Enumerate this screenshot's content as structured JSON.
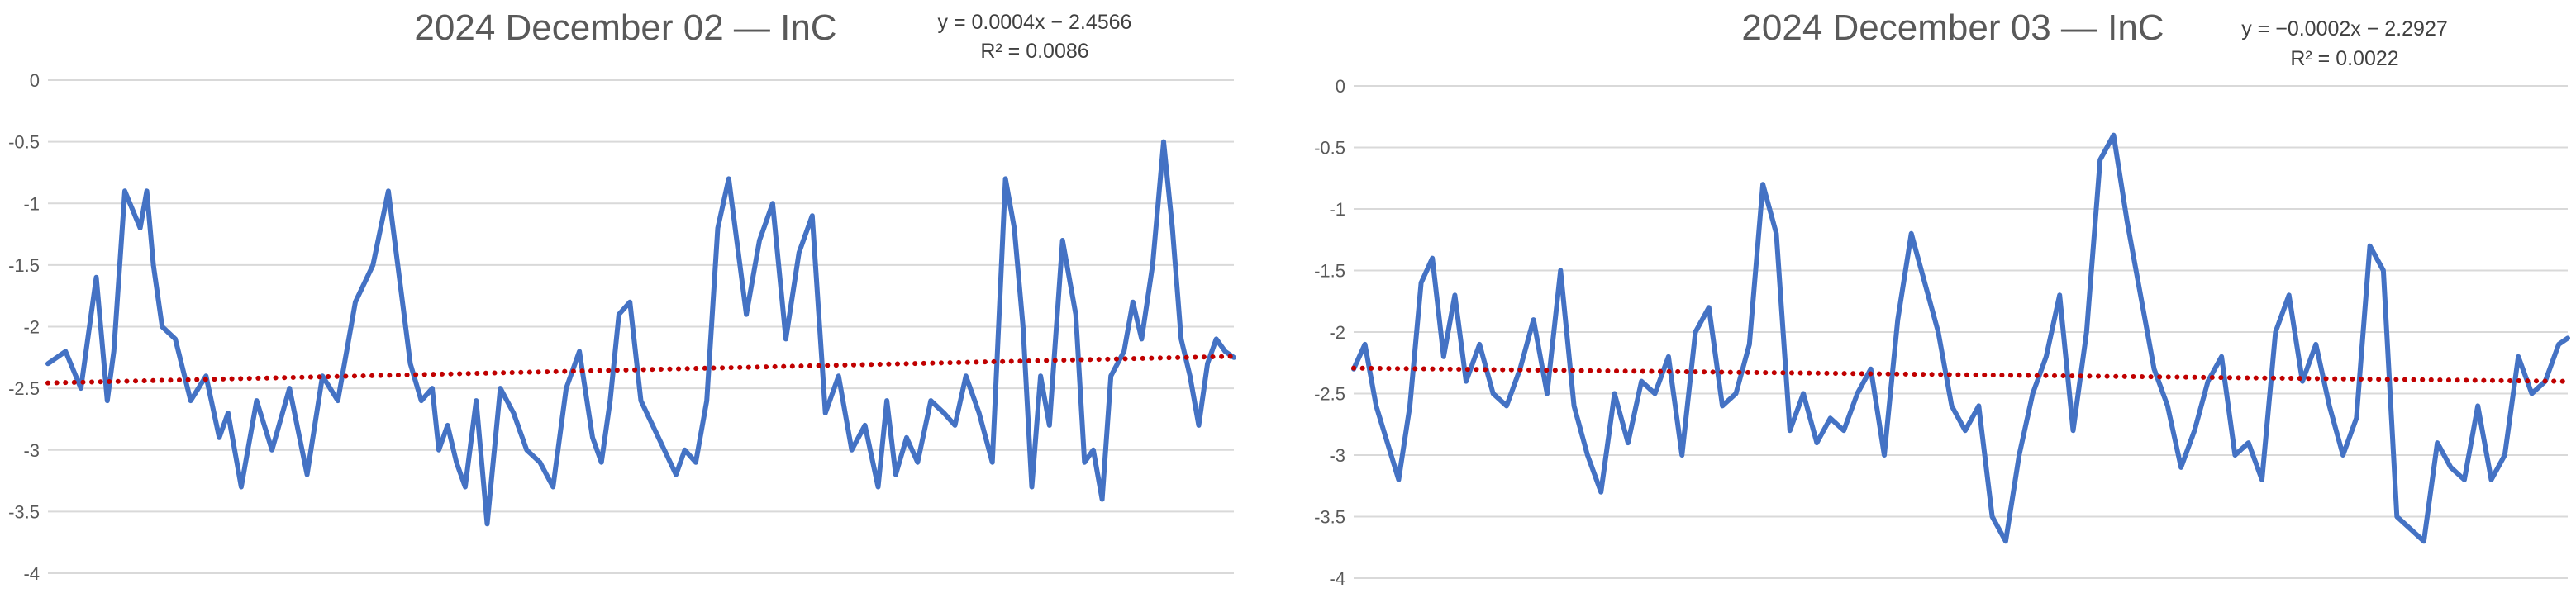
{
  "chart_data": [
    {
      "type": "line",
      "title": "2024 December 02 — InC",
      "equation": "y = 0.0004x − 2.4566",
      "r_squared": "R² = 0.0086",
      "ylim": [
        -4,
        0
      ],
      "yticks": [
        "0",
        "-0.5",
        "-1",
        "-1.5",
        "-2",
        "-2.5",
        "-3",
        "-3.5",
        "-4"
      ],
      "grid": true,
      "legend": "none",
      "colors": {
        "series": "#4472c4",
        "trendline": "#c00000",
        "grid": "#d9d9d9"
      },
      "trendline": {
        "slope": 0.0004,
        "intercept": -2.4566,
        "x_range": [
          0,
          540
        ]
      },
      "series": [
        {
          "x": [
            0,
            8,
            15,
            22,
            27,
            30,
            35,
            42,
            45,
            48,
            52,
            58,
            65,
            72,
            78,
            82,
            88,
            95,
            102,
            110,
            118,
            125,
            132,
            140,
            148,
            155,
            160,
            165,
            170,
            175,
            178,
            182,
            186,
            190,
            195,
            200,
            206,
            212,
            218,
            224,
            230,
            236,
            242,
            248,
            252,
            256,
            260,
            265,
            270,
            278,
            286,
            290,
            295,
            300,
            305,
            310,
            318,
            324,
            330,
            336,
            342,
            348,
            354,
            360,
            366,
            372,
            378,
            382,
            386,
            391,
            396,
            402,
            408,
            413,
            418,
            424,
            430,
            436,
            440,
            444,
            448,
            452,
            456,
            462,
            468,
            472,
            476,
            480,
            484,
            490,
            494,
            498,
            503,
            508,
            512,
            516,
            520,
            524,
            528,
            532,
            536,
            540
          ],
          "values": [
            -2.3,
            -2.2,
            -2.5,
            -1.6,
            -2.6,
            -2.2,
            -0.9,
            -1.2,
            -0.9,
            -1.5,
            -2.0,
            -2.1,
            -2.6,
            -2.4,
            -2.9,
            -2.7,
            -3.3,
            -2.6,
            -3.0,
            -2.5,
            -3.2,
            -2.4,
            -2.6,
            -1.8,
            -1.5,
            -0.9,
            -1.6,
            -2.3,
            -2.6,
            -2.5,
            -3.0,
            -2.8,
            -3.1,
            -3.3,
            -2.6,
            -3.6,
            -2.5,
            -2.7,
            -3.0,
            -3.1,
            -3.3,
            -2.5,
            -2.2,
            -2.9,
            -3.1,
            -2.6,
            -1.9,
            -1.8,
            -2.6,
            -2.9,
            -3.2,
            -3.0,
            -3.1,
            -2.6,
            -1.2,
            -0.8,
            -1.9,
            -1.3,
            -1.0,
            -2.1,
            -1.4,
            -1.1,
            -2.7,
            -2.4,
            -3.0,
            -2.8,
            -3.3,
            -2.6,
            -3.2,
            -2.9,
            -3.1,
            -2.6,
            -2.7,
            -2.8,
            -2.4,
            -2.7,
            -3.1,
            -0.8,
            -1.2,
            -2.0,
            -3.3,
            -2.4,
            -2.8,
            -1.3,
            -1.9,
            -3.1,
            -3.0,
            -3.4,
            -2.4,
            -2.2,
            -1.8,
            -2.1,
            -1.5,
            -0.5,
            -1.2,
            -2.1,
            -2.4,
            -2.8,
            -2.3,
            -2.1,
            -2.2,
            -2.25
          ]
        }
      ]
    },
    {
      "type": "line",
      "title": "2024 December 03 — InC",
      "equation": "y = −0.0002x − 2.2927",
      "r_squared": "R² = 0.0022",
      "ylim": [
        -4,
        0
      ],
      "yticks": [
        "0",
        "-0.5",
        "-1",
        "-1.5",
        "-2",
        "-2.5",
        "-3",
        "-3.5",
        "-4"
      ],
      "grid": true,
      "legend": "none",
      "colors": {
        "series": "#4472c4",
        "trendline": "#c00000",
        "grid": "#d9d9d9"
      },
      "trendline": {
        "slope": -0.0002,
        "intercept": -2.2927,
        "x_range": [
          0,
          540
        ]
      },
      "series": [
        {
          "x": [
            0,
            5,
            10,
            15,
            20,
            25,
            30,
            35,
            40,
            45,
            50,
            56,
            62,
            68,
            74,
            80,
            86,
            92,
            98,
            104,
            110,
            116,
            122,
            128,
            134,
            140,
            146,
            152,
            158,
            164,
            170,
            176,
            182,
            188,
            194,
            200,
            206,
            212,
            218,
            224,
            230,
            236,
            242,
            248,
            254,
            260,
            266,
            272,
            278,
            284,
            290,
            296,
            302,
            308,
            314,
            320,
            326,
            332,
            338,
            344,
            350,
            356,
            362,
            368,
            374,
            380,
            386,
            392,
            398,
            404,
            410,
            416,
            422,
            428,
            434,
            440,
            446,
            452,
            458,
            464,
            470,
            476,
            482,
            488,
            494,
            500,
            506,
            512,
            518,
            524,
            530,
            536,
            540
          ],
          "values": [
            -2.3,
            -2.1,
            -2.6,
            -2.9,
            -3.2,
            -2.6,
            -1.6,
            -1.4,
            -2.2,
            -1.7,
            -2.4,
            -2.1,
            -2.5,
            -2.6,
            -2.3,
            -1.9,
            -2.5,
            -1.5,
            -2.6,
            -3.0,
            -3.3,
            -2.5,
            -2.9,
            -2.4,
            -2.5,
            -2.2,
            -3.0,
            -2.0,
            -1.8,
            -2.6,
            -2.5,
            -2.1,
            -0.8,
            -1.2,
            -2.8,
            -2.5,
            -2.9,
            -2.7,
            -2.8,
            -2.5,
            -2.3,
            -3.0,
            -1.9,
            -1.2,
            -1.6,
            -2.0,
            -2.6,
            -2.8,
            -2.6,
            -3.5,
            -3.7,
            -3.0,
            -2.5,
            -2.2,
            -1.7,
            -2.8,
            -2.0,
            -0.6,
            -0.4,
            -1.1,
            -1.7,
            -2.3,
            -2.6,
            -3.1,
            -2.8,
            -2.4,
            -2.2,
            -3.0,
            -2.9,
            -3.2,
            -2.0,
            -1.7,
            -2.4,
            -2.1,
            -2.6,
            -3.0,
            -2.7,
            -1.3,
            -1.5,
            -3.5,
            -3.6,
            -3.7,
            -2.9,
            -3.1,
            -3.2,
            -2.6,
            -3.2,
            -3.0,
            -2.2,
            -2.5,
            -2.4,
            -2.1,
            -2.05
          ]
        }
      ]
    }
  ]
}
